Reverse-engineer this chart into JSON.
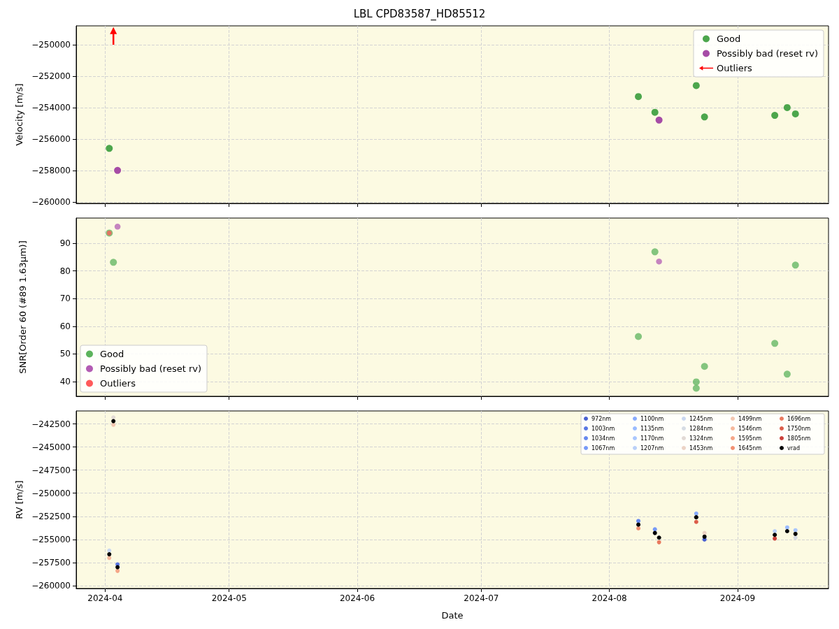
{
  "chart_data": [
    {
      "type": "scatter",
      "title": "LBL CPD83587_HD85512",
      "ylabel": "Velocity [m/s]",
      "xlim": [
        "2024-03-25",
        "2024-09-23"
      ],
      "xticks": [
        "2024-04",
        "2024-05",
        "2024-06",
        "2024-07",
        "2024-08",
        "2024-09"
      ],
      "ylim": [
        -260100,
        -248800
      ],
      "yticks": [
        -260000,
        -258000,
        -256000,
        -254000,
        -252000,
        -250000
      ],
      "tick_labels": "y",
      "grid": true,
      "legend": "top right",
      "marker": "circle",
      "series": [
        {
          "name": "Good",
          "color": "#4ca64c",
          "x": [
            "2024-04-02",
            "2024-08-08",
            "2024-08-12",
            "2024-08-22",
            "2024-08-24",
            "2024-09-10",
            "2024-09-13",
            "2024-09-15"
          ],
          "values": [
            -256600,
            -253300,
            -254300,
            -252600,
            -254600,
            -254500,
            -254000,
            -254400
          ]
        },
        {
          "name": "Possibly bad (reset rv)",
          "color": "#a64ca6",
          "x": [
            "2024-04-04",
            "2024-08-13"
          ],
          "values": [
            -258000,
            -254800
          ]
        },
        {
          "name": "Outliers",
          "color": "#ff0000",
          "marker": "triangle",
          "x": [
            "2024-04-03"
          ],
          "values": [
            -249100
          ],
          "errors": [
            [
              -250000,
              -249100
            ]
          ]
        }
      ]
    },
    {
      "type": "scatter",
      "ylabel": "SNR[Order 60 (#89 1.63μm)]",
      "xlim": [
        "2024-03-25",
        "2024-09-23"
      ],
      "xticks": [
        "2024-04",
        "2024-05",
        "2024-06",
        "2024-07",
        "2024-08",
        "2024-09"
      ],
      "ylim": [
        34.7,
        99.1
      ],
      "yticks": [
        40,
        50,
        60,
        70,
        80,
        90
      ],
      "tick_labels": "y",
      "grid": true,
      "legend": "bottom left",
      "marker": "circle",
      "series": [
        {
          "name": "Good",
          "color": "#5cb35c",
          "x": [
            "2024-04-02",
            "2024-04-03",
            "2024-08-08",
            "2024-08-12",
            "2024-08-22",
            "2024-08-22",
            "2024-08-24",
            "2024-09-10",
            "2024-09-13",
            "2024-09-15"
          ],
          "values": [
            93.7,
            83.1,
            56.3,
            86.9,
            39.9,
            37.6,
            45.5,
            53.8,
            42.7,
            82.1
          ]
        },
        {
          "name": "Possibly bad (reset rv)",
          "color": "#b35cb3",
          "x": [
            "2024-04-04",
            "2024-08-13"
          ],
          "values": [
            96.0,
            83.4
          ]
        },
        {
          "name": "Outliers",
          "color": "#ff5a5a",
          "x": [
            "2024-04-02"
          ],
          "values": [
            93.7
          ]
        }
      ]
    },
    {
      "type": "scatter",
      "xlabel": "Date",
      "ylabel": "RV [m/s]",
      "xlim": [
        "2024-03-25",
        "2024-09-23"
      ],
      "xticks": [
        "2024-04",
        "2024-05",
        "2024-06",
        "2024-07",
        "2024-08",
        "2024-09"
      ],
      "ylim": [
        -260300,
        -241100
      ],
      "yticks": [
        -260000,
        -257500,
        -255000,
        -252500,
        -250000,
        -247500,
        -245000,
        -242500
      ],
      "grid": true,
      "legend": "top right",
      "marker": "circle",
      "series": [
        {
          "name": "972nm",
          "color": "#4961d2",
          "x": [
            "2024-08-24"
          ],
          "values": [
            -255000
          ]
        },
        {
          "name": "1003nm",
          "color": "#5977e3",
          "x": [
            "2024-04-04"
          ],
          "values": [
            -257700
          ]
        },
        {
          "name": "1034nm",
          "color": "#6788ee",
          "x": [
            "2024-08-08"
          ],
          "values": [
            -253000
          ]
        },
        {
          "name": "1067nm",
          "color": "#779af7",
          "x": [
            "2024-08-12"
          ],
          "values": [
            -253900
          ]
        },
        {
          "name": "1100nm",
          "color": "#88abfd",
          "x": [
            "2024-08-22"
          ],
          "values": [
            -252200
          ]
        },
        {
          "name": "1135nm",
          "color": "#9abbff",
          "x": [
            "2024-09-13"
          ],
          "values": [
            -253700
          ]
        },
        {
          "name": "1170nm",
          "color": "#aac7fd",
          "x": [
            "2024-09-15"
          ],
          "values": [
            -254000
          ]
        },
        {
          "name": "1207nm",
          "color": "#bad0f8",
          "x": [
            "2024-09-10"
          ],
          "values": [
            -254100
          ]
        },
        {
          "name": "1245nm",
          "color": "#c9d7f0",
          "x": [
            "2024-04-02"
          ],
          "values": [
            -256200
          ]
        },
        {
          "name": "1284nm",
          "color": "#d6dce4",
          "x": [
            "2024-09-15"
          ],
          "values": [
            -254800
          ]
        },
        {
          "name": "1324nm",
          "color": "#e2dad5",
          "x": [
            "2024-04-03"
          ],
          "values": [
            -241800
          ]
        },
        {
          "name": "1453nm",
          "color": "#ecd3c5",
          "x": [
            "2024-08-24"
          ],
          "values": [
            -254300
          ]
        },
        {
          "name": "1499nm",
          "color": "#f3c7b1",
          "x": [
            "2024-04-03"
          ],
          "values": [
            -242600
          ]
        },
        {
          "name": "1546nm",
          "color": "#f6b89c",
          "x": [
            "2024-04-02"
          ],
          "values": [
            -257000
          ]
        },
        {
          "name": "1595nm",
          "color": "#f5a688",
          "x": [
            "2024-04-04"
          ],
          "values": [
            -258400
          ]
        },
        {
          "name": "1645nm",
          "color": "#f29072",
          "x": [
            "2024-08-08"
          ],
          "values": [
            -253800
          ]
        },
        {
          "name": "1696nm",
          "color": "#e97a5f",
          "x": [
            "2024-08-13"
          ],
          "values": [
            -255300
          ]
        },
        {
          "name": "1750nm",
          "color": "#dc5d4a",
          "x": [
            "2024-08-22"
          ],
          "values": [
            -253100
          ]
        },
        {
          "name": "1805nm",
          "color": "#cc403a",
          "x": [
            "2024-09-10"
          ],
          "values": [
            -254900
          ]
        },
        {
          "name": "vrad",
          "color": "#000000",
          "x": [
            "2024-04-02",
            "2024-04-03",
            "2024-04-04",
            "2024-08-08",
            "2024-08-12",
            "2024-08-13",
            "2024-08-22",
            "2024-08-24",
            "2024-09-10",
            "2024-09-13",
            "2024-09-15"
          ],
          "values": [
            -256600,
            -242200,
            -258000,
            -253400,
            -254300,
            -254800,
            -252600,
            -254700,
            -254500,
            -254100,
            -254400
          ]
        }
      ]
    }
  ]
}
